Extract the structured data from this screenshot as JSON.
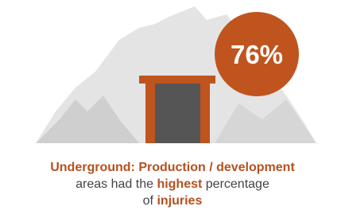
{
  "stat": "76%",
  "caption": {
    "lines": [
      [
        {
          "text": "Underground: Production / development",
          "bold": true
        }
      ],
      [
        {
          "text": "areas had the ",
          "bold": false
        },
        {
          "text": "highest",
          "bold": true
        },
        {
          "text": " percentage",
          "bold": false
        }
      ],
      [
        {
          "text": "of ",
          "bold": false
        },
        {
          "text": "injuries",
          "bold": true
        }
      ]
    ]
  }
}
